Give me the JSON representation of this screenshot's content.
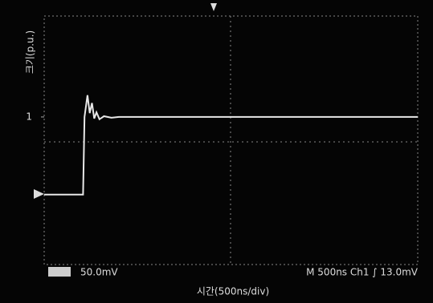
{
  "chart_data": {
    "type": "line",
    "ylabel": "크기(p.u.)",
    "xlabel": "시간(500ns/div)",
    "channel_label": "50.0mV",
    "status_label": "M 500ns  Ch1 ∫  13.0mV",
    "x": [
      0,
      520,
      540,
      580,
      610,
      640,
      670,
      700,
      740,
      800,
      900,
      1000,
      1500,
      2000,
      2500,
      3000,
      3500,
      4000,
      4500,
      5000
    ],
    "series": [
      {
        "color": "#e8e8e8",
        "values": [
          0,
          0,
          1.0,
          1.28,
          1.05,
          1.18,
          0.98,
          1.06,
          0.97,
          1.01,
          0.99,
          1.0,
          1.0,
          1.0,
          1.0,
          1.0,
          1.0,
          1.0,
          1.0,
          1.0
        ]
      }
    ],
    "xlim": [
      0,
      5000
    ],
    "ylim": [
      -0.9,
      2.3
    ],
    "yticks": [
      1
    ]
  }
}
